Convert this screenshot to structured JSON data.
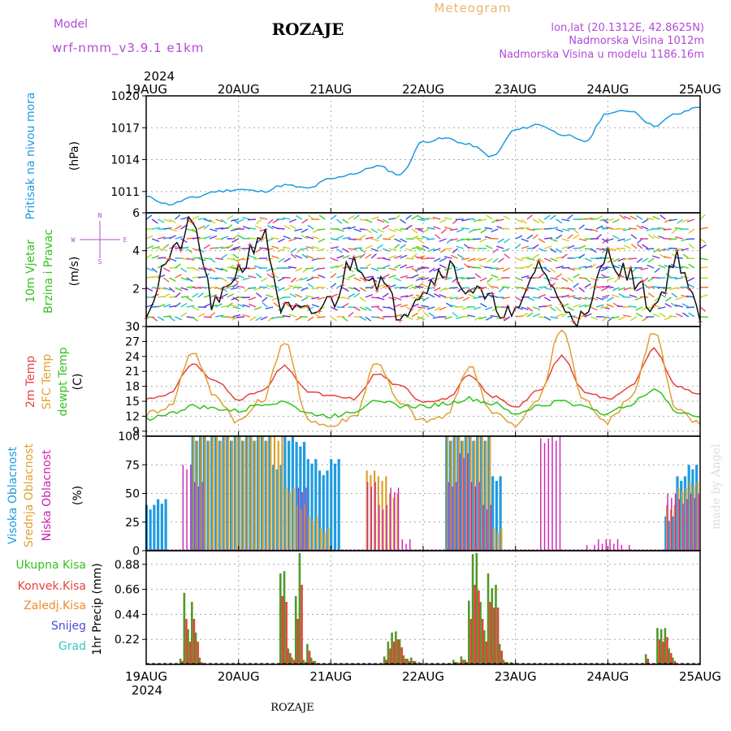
{
  "header": {
    "model_label": "Model",
    "model_name": "wrf-nmm_v3.9.1 e1km",
    "station": "ROZAJE",
    "meteogram": "Meteogram",
    "coords": "lon,lat (20.1312E, 42.8625N)",
    "elevation": "Nadmorska Visina 1012m",
    "elevation_model": "Nadmorska Visina u modelu 1186.16m",
    "year_top": "2024",
    "year_bottom": "2024",
    "footer_station": "ROZAJE",
    "watermark": "made by Angel"
  },
  "colors": {
    "pressure": "#1e9be0",
    "temp2m": "#e8423c",
    "sfc": "#e0a030",
    "dew": "#33c21d",
    "cloud_high": "#1e9be0",
    "cloud_mid": "#d9a02a",
    "cloud_low": "#cc1fb0",
    "precip_total": "#4f9a2a",
    "precip_conv": "#e8423c",
    "precip_frz": "#f08a30",
    "snow": "#4a4ad8",
    "hail": "#30c8c8",
    "model_text": "#b04ad8"
  },
  "chart_data": [
    {
      "type": "line",
      "name": "pressure",
      "ylabel_lines": [
        "Pritisak na nivou mora",
        "(hPa)"
      ],
      "x_ticks": [
        "19AUG",
        "20AUG",
        "21AUG",
        "22AUG",
        "23AUG",
        "24AUG",
        "25AUG"
      ],
      "ylim": [
        1009,
        1020
      ],
      "yticks": [
        1011,
        1014,
        1017,
        1020
      ],
      "x_hours": [
        0,
        6,
        12,
        18,
        24,
        30,
        36,
        42,
        48,
        54,
        60,
        66,
        72,
        78,
        84,
        90,
        96,
        102,
        108,
        114,
        120,
        126,
        132,
        138,
        144
      ],
      "values": [
        1010.5,
        1009.8,
        1010.4,
        1011.0,
        1011.2,
        1011.0,
        1011.6,
        1011.3,
        1012.2,
        1012.7,
        1013.4,
        1012.6,
        1015.7,
        1016.0,
        1015.4,
        1014.3,
        1016.8,
        1017.3,
        1016.4,
        1015.7,
        1018.4,
        1018.6,
        1017.2,
        1018.3,
        1019.0
      ]
    },
    {
      "type": "barbs",
      "name": "wind",
      "ylabel_lines": [
        "10m Vjetar",
        "Brzina i Pravac",
        "(m/s)"
      ],
      "compass": [
        "N",
        "E",
        "S",
        "W"
      ],
      "ylim": [
        0,
        6
      ],
      "yticks": [
        0,
        2,
        4,
        6
      ],
      "x_hours": [
        0,
        6,
        12,
        18,
        24,
        30,
        36,
        42,
        48,
        54,
        60,
        66,
        72,
        78,
        84,
        90,
        96,
        102,
        108,
        114,
        120,
        126,
        132,
        138,
        144
      ],
      "speed": [
        1.0,
        3.6,
        5.3,
        1.0,
        3.0,
        4.9,
        0.8,
        0.6,
        1.3,
        3.5,
        2.5,
        0.8,
        2.0,
        3.2,
        2.0,
        1.2,
        0.5,
        3.3,
        1.2,
        0.3,
        3.8,
        2.6,
        1.1,
        3.6,
        0.5
      ]
    },
    {
      "type": "line",
      "name": "temperature",
      "ylabel_lines": [
        "2m Temp",
        "SFC Temp",
        "dewpt Temp",
        "(C)"
      ],
      "ylim": [
        8,
        30
      ],
      "yticks": [
        9,
        12,
        15,
        18,
        21,
        24,
        27,
        30
      ],
      "x_hours": [
        0,
        6,
        12,
        18,
        24,
        30,
        36,
        42,
        48,
        54,
        60,
        66,
        72,
        78,
        84,
        90,
        96,
        102,
        108,
        114,
        120,
        126,
        132,
        138,
        144
      ],
      "series": [
        {
          "name": "2m Temp",
          "values": [
            15.5,
            16.5,
            22.5,
            19.0,
            15.5,
            17.0,
            22.0,
            17.0,
            16.0,
            15.5,
            20.5,
            18.0,
            15.0,
            15.5,
            20.0,
            16.0,
            14.0,
            17.0,
            24.0,
            17.0,
            15.5,
            18.0,
            25.5,
            18.0,
            16.5
          ]
        },
        {
          "name": "SFC Temp",
          "values": [
            12.5,
            14.0,
            25.0,
            16.0,
            11.0,
            15.0,
            27.0,
            11.5,
            10.0,
            12.0,
            23.0,
            14.5,
            11.0,
            12.0,
            22.0,
            13.0,
            10.0,
            15.5,
            29.5,
            15.0,
            11.0,
            16.0,
            29.0,
            13.0,
            10.5
          ]
        },
        {
          "name": "dewpt Temp",
          "values": [
            11.5,
            12.5,
            14.0,
            13.5,
            13.0,
            14.5,
            15.0,
            12.5,
            12.0,
            13.0,
            15.5,
            14.0,
            14.0,
            14.5,
            15.5,
            14.5,
            12.5,
            14.0,
            15.0,
            14.0,
            12.5,
            14.5,
            17.5,
            13.0,
            12.0
          ]
        }
      ]
    },
    {
      "type": "bar",
      "name": "clouds",
      "ylabel_lines": [
        "Visoka Oblacnost",
        "Srednja Oblacnost",
        "Niska Oblacnost",
        "(%)"
      ],
      "ylim": [
        0,
        100
      ],
      "yticks": [
        0,
        25,
        50,
        75,
        100
      ],
      "x_hours": [
        0,
        3,
        6,
        9,
        12,
        15,
        18,
        21,
        24,
        27,
        30,
        33,
        36,
        39,
        42,
        45,
        48,
        51,
        54,
        57,
        60,
        63,
        66,
        69,
        72,
        75,
        78,
        81,
        84,
        87,
        90,
        93,
        96,
        99,
        102,
        105,
        108,
        111,
        114,
        117,
        120,
        123,
        126,
        129,
        132,
        135,
        138,
        141,
        144
      ],
      "series": [
        {
          "name": "Visoka Oblacnost",
          "values": [
            40,
            45,
            0,
            0,
            100,
            100,
            100,
            100,
            100,
            100,
            100,
            75,
            100,
            95,
            80,
            70,
            80,
            0,
            0,
            0,
            0,
            0,
            0,
            0,
            0,
            0,
            100,
            100,
            100,
            100,
            65,
            0,
            0,
            0,
            0,
            0,
            0,
            0,
            0,
            0,
            0,
            0,
            0,
            0,
            0,
            30,
            65,
            75,
            0
          ]
        },
        {
          "name": "Srednja Oblacnost",
          "values": [
            0,
            0,
            0,
            0,
            100,
            100,
            100,
            100,
            100,
            100,
            100,
            100,
            55,
            40,
            30,
            20,
            0,
            0,
            0,
            70,
            65,
            50,
            0,
            0,
            0,
            0,
            100,
            100,
            100,
            100,
            20,
            0,
            0,
            0,
            0,
            0,
            0,
            0,
            0,
            0,
            0,
            0,
            0,
            0,
            0,
            40,
            55,
            60,
            0
          ]
        },
        {
          "name": "Niska Oblacnost",
          "values": [
            0,
            0,
            0,
            75,
            60,
            0,
            0,
            0,
            0,
            0,
            0,
            0,
            0,
            55,
            0,
            0,
            0,
            0,
            0,
            60,
            40,
            55,
            10,
            0,
            0,
            0,
            60,
            85,
            60,
            40,
            0,
            0,
            0,
            0,
            98,
            100,
            0,
            0,
            5,
            10,
            10,
            5,
            0,
            0,
            0,
            50,
            45,
            50,
            0
          ]
        }
      ]
    },
    {
      "type": "bar",
      "name": "precipitation",
      "ylabel": "1hr Precip (mm)",
      "legend": [
        "Ukupna Kisa",
        "Konvek.Kisa",
        "Zaledj.Kisa",
        "Snijeg",
        "Grad"
      ],
      "ylim": [
        0,
        1.0
      ],
      "yticks": [
        0.22,
        0.44,
        0.66,
        0.88
      ],
      "x_hours": [
        9,
        10,
        11,
        12,
        13,
        14,
        15,
        35,
        36,
        37,
        38,
        39,
        40,
        41,
        42,
        43,
        44,
        62,
        63,
        64,
        65,
        66,
        67,
        68,
        69,
        70,
        71,
        80,
        81,
        82,
        83,
        84,
        85,
        86,
        87,
        88,
        89,
        90,
        91,
        92,
        93,
        94,
        95,
        130,
        133,
        134,
        135,
        136,
        137
      ],
      "series": [
        {
          "name": "Ukupna Kisa",
          "values": [
            0.05,
            0.63,
            0.31,
            0.55,
            0.28,
            0.06,
            0.01,
            0.8,
            0.82,
            0.14,
            0.06,
            0.6,
            0.98,
            0.04,
            0.18,
            0.06,
            0.03,
            0.07,
            0.2,
            0.28,
            0.29,
            0.22,
            0.08,
            0.05,
            0.06,
            0.03,
            0.02,
            0.04,
            0.02,
            0.07,
            0.04,
            0.56,
            0.97,
            0.98,
            0.55,
            0.3,
            0.8,
            0.67,
            0.7,
            0.18,
            0.04,
            0.02,
            0.02,
            0.09,
            0.32,
            0.31,
            0.32,
            0.14,
            0.06
          ]
        },
        {
          "name": "Konvek.Kisa",
          "values": [
            0.03,
            0.4,
            0.2,
            0.4,
            0.2,
            0.02,
            0.0,
            0.6,
            0.55,
            0.1,
            0.04,
            0.4,
            0.7,
            0.02,
            0.12,
            0.03,
            0.01,
            0.04,
            0.14,
            0.2,
            0.22,
            0.15,
            0.05,
            0.03,
            0.03,
            0.01,
            0.01,
            0.02,
            0.01,
            0.04,
            0.02,
            0.4,
            0.7,
            0.65,
            0.4,
            0.2,
            0.55,
            0.5,
            0.5,
            0.12,
            0.02,
            0.01,
            0.01,
            0.05,
            0.22,
            0.2,
            0.24,
            0.1,
            0.03
          ]
        }
      ]
    }
  ]
}
